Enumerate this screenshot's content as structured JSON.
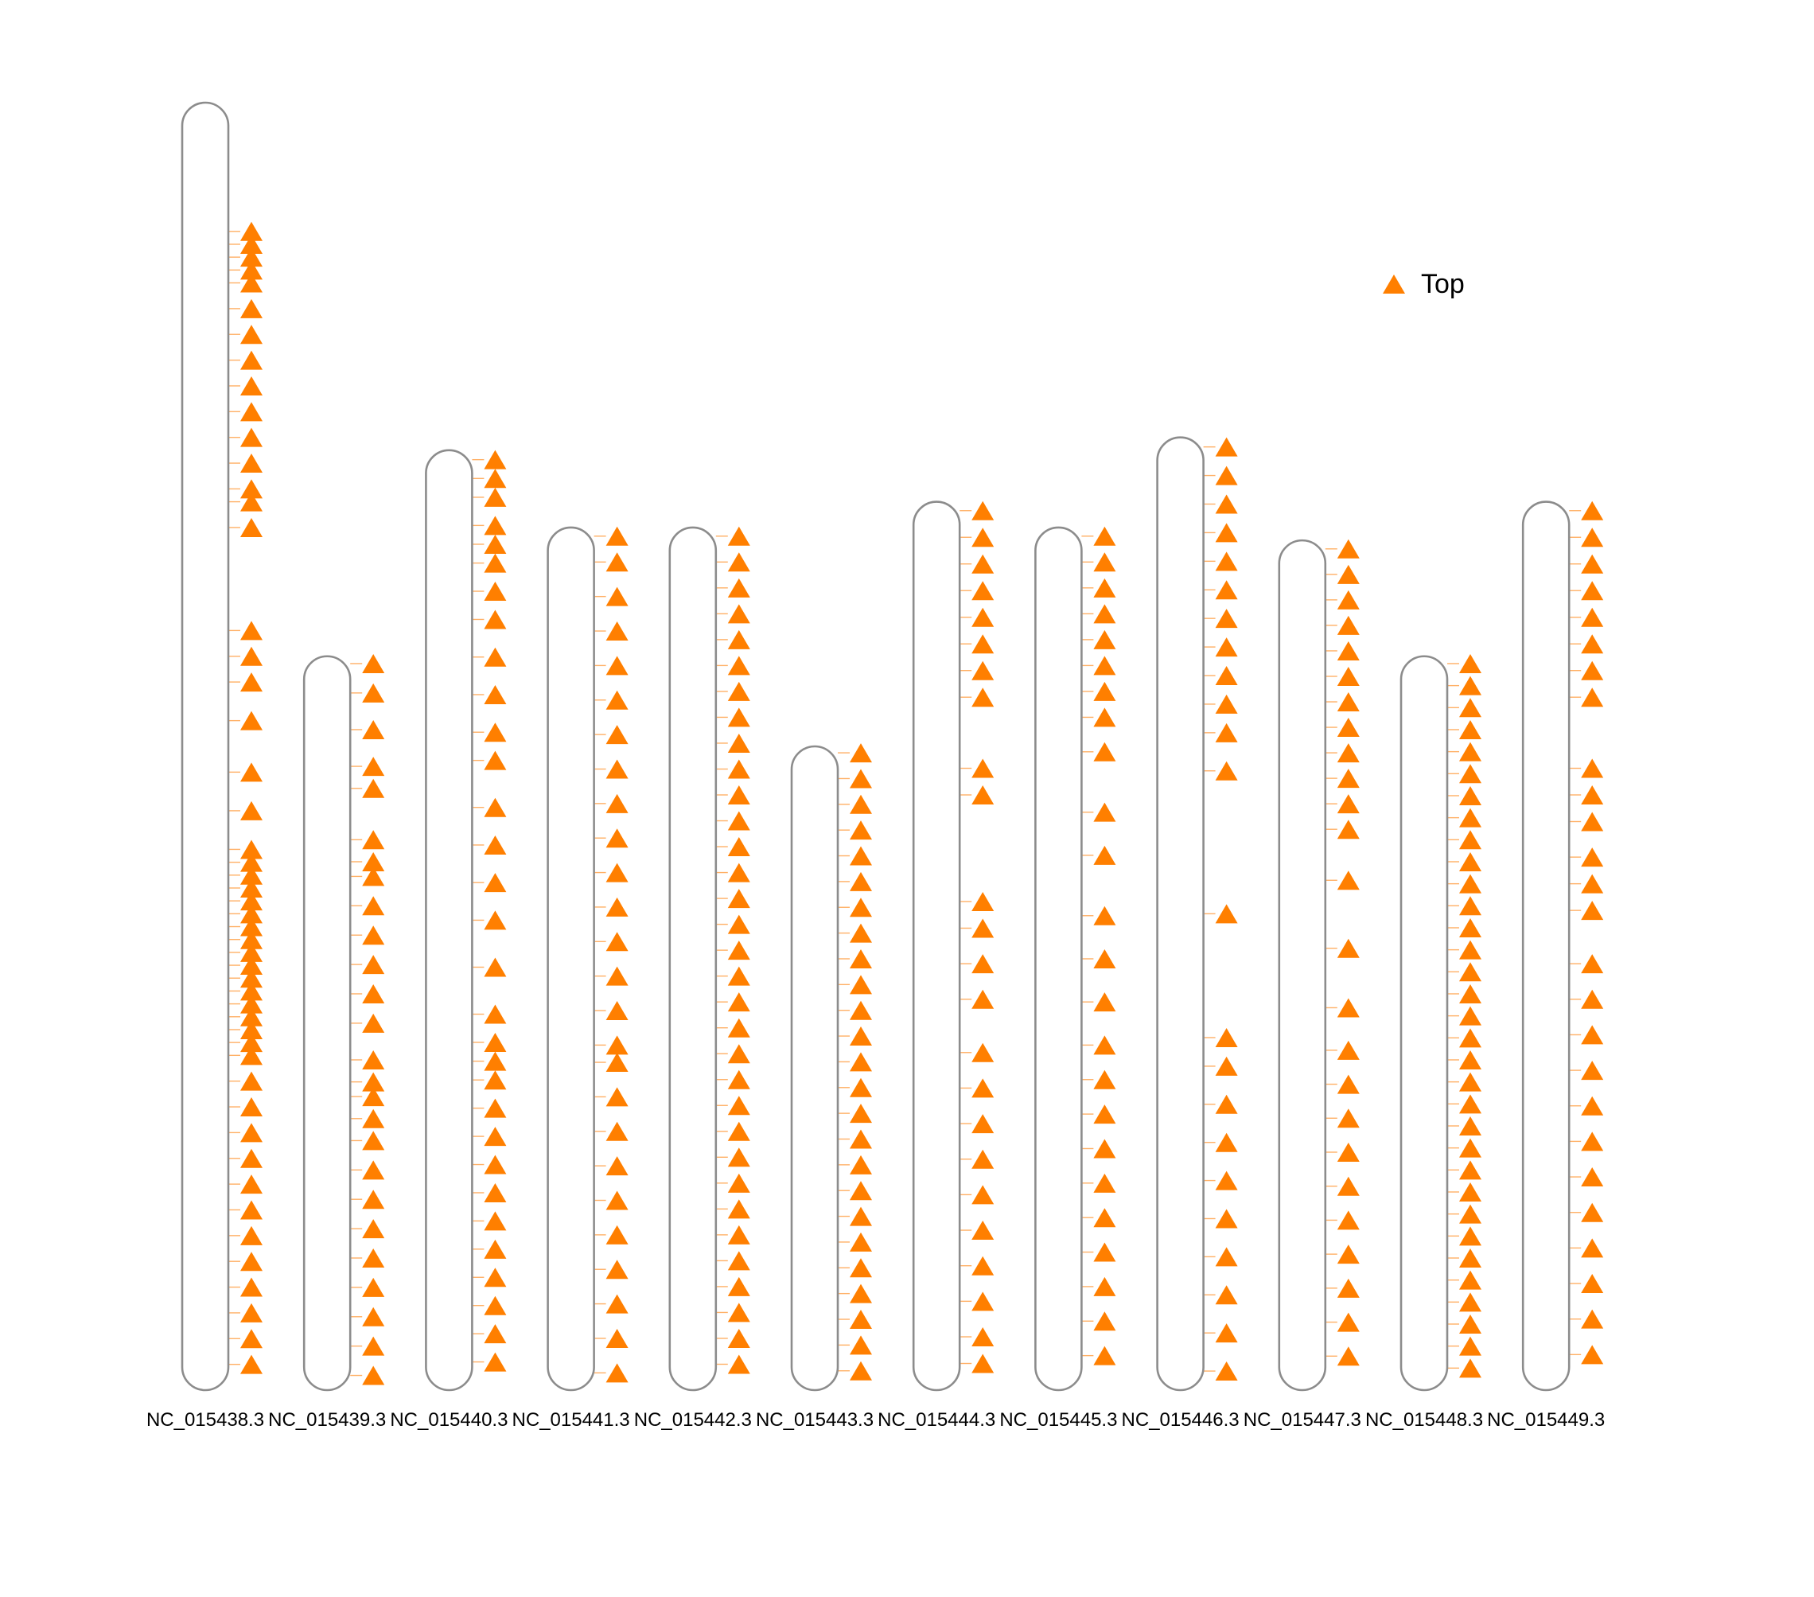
{
  "chart_data": {
    "type": "chromosome-ideogram",
    "marker_shape": "triangle",
    "colors": {
      "marker": "#FF7F00",
      "connector": "#FFB066",
      "chromosome_outline": "#8C8C8C",
      "chromosome_fill": "#FFFFFF"
    },
    "legend": {
      "position": "top-right",
      "entries": [
        {
          "label": "Top",
          "color": "#FF7F00",
          "shape": "triangle"
        }
      ]
    },
    "chromosomes": [
      {
        "label": "NC_015438.3",
        "relative_length": 1.0
      },
      {
        "label": "NC_015439.3",
        "relative_length": 0.57
      },
      {
        "label": "NC_015440.3",
        "relative_length": 0.73
      },
      {
        "label": "NC_015441.3",
        "relative_length": 0.67
      },
      {
        "label": "NC_015442.3",
        "relative_length": 0.67
      },
      {
        "label": "NC_015443.3",
        "relative_length": 0.5
      },
      {
        "label": "NC_015444.3",
        "relative_length": 0.69
      },
      {
        "label": "NC_015445.3",
        "relative_length": 0.67
      },
      {
        "label": "NC_015446.3",
        "relative_length": 0.74
      },
      {
        "label": "NC_015447.3",
        "relative_length": 0.66
      },
      {
        "label": "NC_015448.3",
        "relative_length": 0.57
      },
      {
        "label": "NC_015449.3",
        "relative_length": 0.69
      }
    ],
    "hit_positions_note": "hits are listed as fractions along each chromosome (0 = top end, 1 = bottom end)",
    "hits": [
      [
        0.1,
        0.11,
        0.12,
        0.13,
        0.14,
        0.16,
        0.18,
        0.2,
        0.22,
        0.24,
        0.26,
        0.28,
        0.3,
        0.31,
        0.33,
        0.41,
        0.43,
        0.45,
        0.48,
        0.52,
        0.55,
        0.58,
        0.59,
        0.6,
        0.61,
        0.62,
        0.63,
        0.64,
        0.65,
        0.66,
        0.67,
        0.68,
        0.69,
        0.7,
        0.71,
        0.72,
        0.73,
        0.74,
        0.76,
        0.78,
        0.8,
        0.82,
        0.84,
        0.86,
        0.88,
        0.9,
        0.92,
        0.94,
        0.96,
        0.98
      ],
      [
        0.01,
        0.05,
        0.1,
        0.15,
        0.18,
        0.25,
        0.28,
        0.3,
        0.34,
        0.38,
        0.42,
        0.46,
        0.5,
        0.55,
        0.58,
        0.6,
        0.63,
        0.66,
        0.7,
        0.74,
        0.78,
        0.82,
        0.86,
        0.9,
        0.94,
        0.98
      ],
      [
        0.01,
        0.03,
        0.05,
        0.08,
        0.1,
        0.12,
        0.15,
        0.18,
        0.22,
        0.26,
        0.3,
        0.33,
        0.38,
        0.42,
        0.46,
        0.5,
        0.55,
        0.6,
        0.63,
        0.65,
        0.67,
        0.7,
        0.73,
        0.76,
        0.79,
        0.82,
        0.85,
        0.88,
        0.91,
        0.94,
        0.97
      ],
      [
        0.01,
        0.04,
        0.08,
        0.12,
        0.16,
        0.2,
        0.24,
        0.28,
        0.32,
        0.36,
        0.4,
        0.44,
        0.48,
        0.52,
        0.56,
        0.6,
        0.62,
        0.66,
        0.7,
        0.74,
        0.78,
        0.82,
        0.86,
        0.9,
        0.94,
        0.98
      ],
      [
        0.01,
        0.04,
        0.07,
        0.1,
        0.13,
        0.16,
        0.19,
        0.22,
        0.25,
        0.28,
        0.31,
        0.34,
        0.37,
        0.4,
        0.43,
        0.46,
        0.49,
        0.52,
        0.55,
        0.58,
        0.61,
        0.64,
        0.67,
        0.7,
        0.73,
        0.76,
        0.79,
        0.82,
        0.85,
        0.88,
        0.91,
        0.94,
        0.97
      ],
      [
        0.01,
        0.05,
        0.09,
        0.13,
        0.17,
        0.21,
        0.25,
        0.29,
        0.33,
        0.37,
        0.41,
        0.45,
        0.49,
        0.53,
        0.57,
        0.61,
        0.65,
        0.69,
        0.73,
        0.77,
        0.81,
        0.85,
        0.89,
        0.93,
        0.97
      ],
      [
        0.01,
        0.04,
        0.07,
        0.1,
        0.13,
        0.16,
        0.19,
        0.22,
        0.3,
        0.33,
        0.45,
        0.48,
        0.52,
        0.56,
        0.62,
        0.66,
        0.7,
        0.74,
        0.78,
        0.82,
        0.86,
        0.9,
        0.94,
        0.97
      ],
      [
        0.01,
        0.04,
        0.07,
        0.1,
        0.13,
        0.16,
        0.19,
        0.22,
        0.26,
        0.33,
        0.38,
        0.45,
        0.5,
        0.55,
        0.6,
        0.64,
        0.68,
        0.72,
        0.76,
        0.8,
        0.84,
        0.88,
        0.92,
        0.96
      ],
      [
        0.01,
        0.04,
        0.07,
        0.1,
        0.13,
        0.16,
        0.19,
        0.22,
        0.25,
        0.28,
        0.31,
        0.35,
        0.5,
        0.63,
        0.66,
        0.7,
        0.74,
        0.78,
        0.82,
        0.86,
        0.9,
        0.94,
        0.98
      ],
      [
        0.01,
        0.04,
        0.07,
        0.1,
        0.13,
        0.16,
        0.19,
        0.22,
        0.25,
        0.28,
        0.31,
        0.34,
        0.4,
        0.48,
        0.55,
        0.6,
        0.64,
        0.68,
        0.72,
        0.76,
        0.8,
        0.84,
        0.88,
        0.92,
        0.96
      ],
      [
        0.01,
        0.04,
        0.07,
        0.1,
        0.13,
        0.16,
        0.19,
        0.22,
        0.25,
        0.28,
        0.31,
        0.34,
        0.37,
        0.4,
        0.43,
        0.46,
        0.49,
        0.52,
        0.55,
        0.58,
        0.61,
        0.64,
        0.67,
        0.7,
        0.73,
        0.76,
        0.79,
        0.82,
        0.85,
        0.88,
        0.91,
        0.94,
        0.97
      ],
      [
        0.01,
        0.04,
        0.07,
        0.1,
        0.13,
        0.16,
        0.19,
        0.22,
        0.3,
        0.33,
        0.36,
        0.4,
        0.43,
        0.46,
        0.52,
        0.56,
        0.6,
        0.64,
        0.68,
        0.72,
        0.76,
        0.8,
        0.84,
        0.88,
        0.92,
        0.96
      ]
    ]
  }
}
